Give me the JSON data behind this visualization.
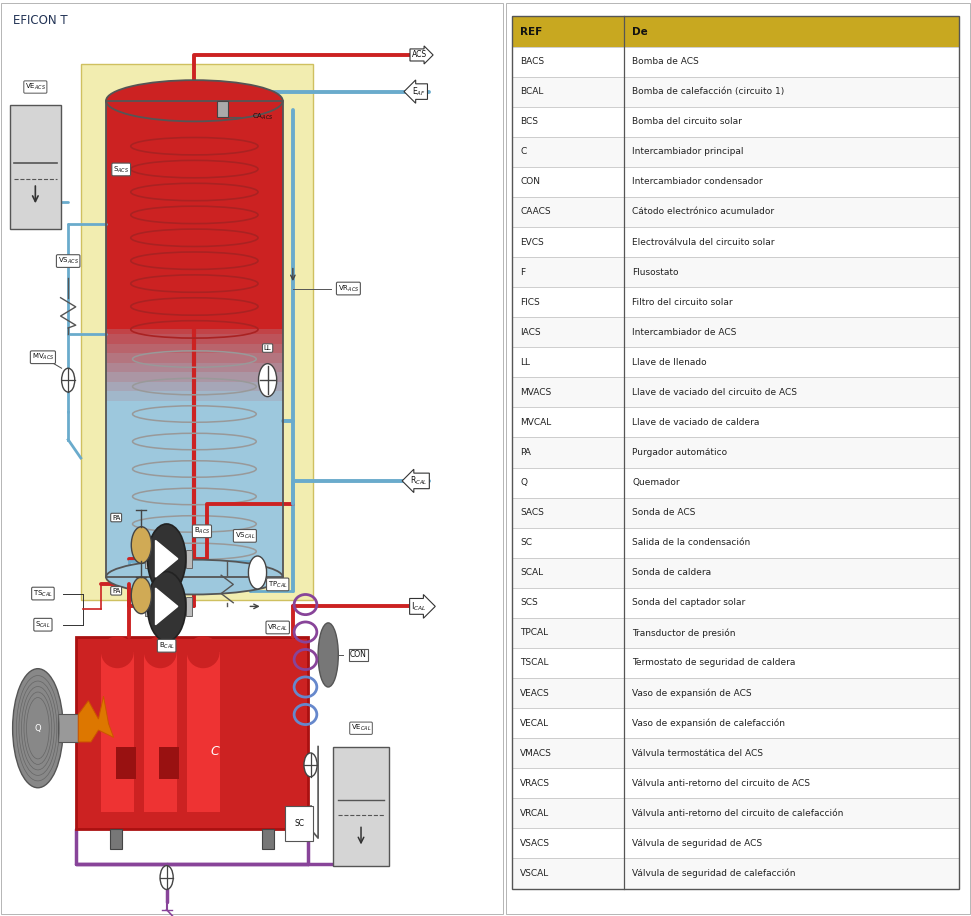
{
  "title_left": "EFICON T",
  "background_color": "#ffffff",
  "ref_col": [
    "BACS",
    "BCAL",
    "BCS",
    "C",
    "CON",
    "CAACS",
    "EVCS",
    "F",
    "FICS",
    "IACS",
    "LL",
    "MVACS",
    "MVCAL",
    "PA",
    "Q",
    "SACS",
    "SC",
    "SCAL",
    "SCS",
    "TPCAL",
    "TSCAL",
    "VEACS",
    "VECAL",
    "VMACS",
    "VRACS",
    "VRCAL",
    "VSACS",
    "VSCAL"
  ],
  "de_col": [
    "Bomba de ACS",
    "Bomba de calefacción (circuito 1)",
    "Bomba del circuito solar",
    "Intercambiador principal",
    "Intercambiador condensador",
    "Cátodo electrónico acumulador",
    "Electroválvula del circuito solar",
    "Flusostato",
    "Filtro del circuito solar",
    "Intercambiador de ACS",
    "Llave de llenado",
    "Llave de vaciado del circuito de ACS",
    "Llave de vaciado de caldera",
    "Purgador automático",
    "Quemador",
    "Sonda de ACS",
    "Salida de la condensación",
    "Sonda de caldera",
    "Sonda del captador solar",
    "Transductor de presión",
    "Termostato de seguridad de caldera",
    "Vaso de expansión de ACS",
    "Vaso de expansión de calefacción",
    "Válvula termostática del ACS",
    "Válvula anti-retorno del circuito de ACS",
    "Válvula anti-retorno del circuito de calefacción",
    "Válvula de seguridad de ACS",
    "Válvula de seguridad de calefacción"
  ],
  "table_header_bg": "#c8a820",
  "red_pipe": "#cc2222",
  "blue_pipe": "#6aabcc",
  "purple_pipe": "#884499",
  "lw_main": 2.8,
  "lw_thin": 2.0
}
